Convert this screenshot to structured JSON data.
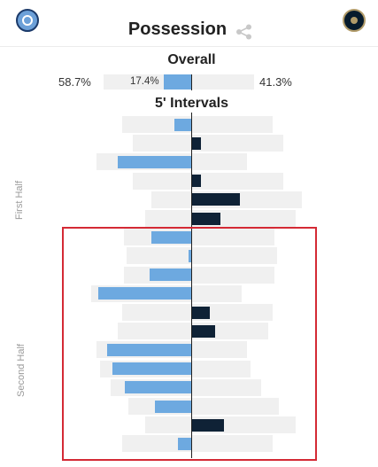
{
  "header": {
    "title": "Possession",
    "home_logo_icon": "nycfc-crest-icon",
    "away_logo_icon": "philadelphia-union-crest-icon",
    "share_icon": "share-icon"
  },
  "overall": {
    "label": "Overall",
    "home_pct_text": "58.7%",
    "away_pct_text": "41.3%",
    "inner_text": "17.4%",
    "home_pct": 58.7,
    "away_pct": 41.3,
    "advantage_pct": 17.4,
    "advantage_team": "home"
  },
  "intervals": {
    "label": "5' Intervals",
    "first_half_label": "First Half",
    "second_half_label": "Second Half"
  },
  "colors": {
    "home": "#6da9e0",
    "away": "#0f2236",
    "background_bar": "#f0f0f0",
    "highlight": "#d42a35"
  },
  "chart_data": {
    "type": "bar",
    "title": "Possession",
    "orientation": "diverging-horizontal",
    "series": [
      {
        "team": "home",
        "possession": [
          46,
          39,
          63,
          39,
          27,
          31,
          45,
          43,
          45,
          67,
          46,
          49,
          63,
          61,
          54,
          42,
          31,
          46
        ],
        "advantage": [
          10,
          0,
          42,
          0,
          0,
          0,
          23,
          2,
          24,
          53,
          0,
          0,
          48,
          45,
          38,
          21,
          0,
          8
        ]
      },
      {
        "team": "away",
        "possession": [
          54,
          61,
          37,
          61,
          73,
          69,
          55,
          57,
          55,
          33,
          54,
          51,
          37,
          39,
          46,
          58,
          69,
          54
        ],
        "advantage": [
          0,
          5,
          0,
          5,
          27,
          16,
          0,
          0,
          0,
          0,
          10,
          13,
          0,
          0,
          0,
          0,
          18,
          0
        ]
      }
    ],
    "highlight": "second-half intervals"
  }
}
